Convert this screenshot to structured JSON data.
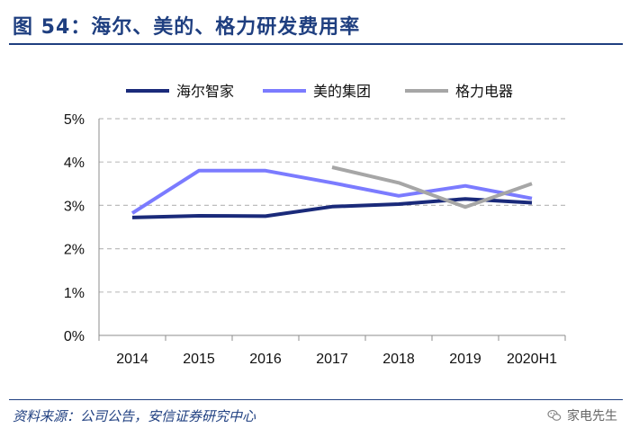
{
  "title": "图 54：海尔、美的、格力研发费用率",
  "source": "资料来源：公司公告，安信证券研究中心",
  "brand": "家电先生",
  "chart_data": {
    "type": "line",
    "title": "图 54：海尔、美的、格力研发费用率",
    "categories": [
      "2014",
      "2015",
      "2016",
      "2017",
      "2018",
      "2019",
      "2020H1"
    ],
    "y_ticks": [
      "0%",
      "1%",
      "2%",
      "3%",
      "4%",
      "5%"
    ],
    "ylim": [
      0,
      5
    ],
    "ylabel": "",
    "xlabel": "",
    "grid": "horizontal-dashed",
    "legend_position": "top",
    "series": [
      {
        "name": "海尔智家",
        "color": "#1a2a7a",
        "values": [
          2.72,
          2.76,
          2.75,
          2.97,
          3.03,
          3.15,
          3.06
        ]
      },
      {
        "name": "美的集团",
        "color": "#7b7bff",
        "values": [
          2.82,
          3.8,
          3.8,
          3.52,
          3.22,
          3.45,
          3.16
        ]
      },
      {
        "name": "格力电器",
        "color": "#a6a6a6",
        "values": [
          null,
          null,
          null,
          3.88,
          3.52,
          2.96,
          3.5
        ]
      }
    ]
  }
}
